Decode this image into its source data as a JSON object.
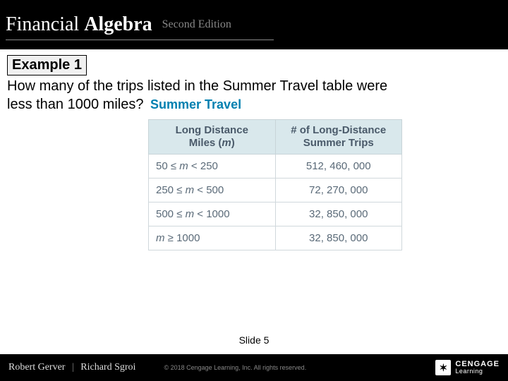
{
  "header": {
    "title_part1": "Financial ",
    "title_part2": "Algebra",
    "edition": "Second Edition"
  },
  "example": {
    "label": "Example 1",
    "question_line1": "How many of the trips listed in the Summer Travel table were",
    "question_line2": "less than 1000 miles?",
    "table_title": "Summer Travel"
  },
  "table": {
    "col1_line1": "Long Distance",
    "col1_line2": "Miles (m)",
    "col2_line1": "# of Long-Distance",
    "col2_line2": "Summer Trips",
    "rows": [
      {
        "range_pre": "50 ≤ ",
        "range_m": "m",
        "range_post": " < 250",
        "trips": "512, 460, 000"
      },
      {
        "range_pre": "250 ≤ ",
        "range_m": "m",
        "range_post": " < 500",
        "trips": "72, 270, 000"
      },
      {
        "range_pre": "500 ≤ ",
        "range_m": "m",
        "range_post": " < 1000",
        "trips": "32, 850, 000"
      },
      {
        "range_pre": "",
        "range_m": "m",
        "range_post": " ≥ 1000",
        "trips": "32, 850, 000"
      }
    ]
  },
  "slide": "Slide 5",
  "footer": {
    "author1": "Robert Gerver",
    "author2": "Richard Sgroi",
    "copyright": "© 2018 Cengage Learning, Inc. All rights reserved.",
    "brand_top": "CENGAGE",
    "brand_bot": "Learning"
  },
  "colors": {
    "header_bg": "#000000",
    "table_header_bg": "#d9e8ec",
    "table_header_text": "#4a5a6a",
    "table_cell_text": "#5a6a78",
    "table_border": "#d0d8dc",
    "accent_title": "#0080b0"
  }
}
